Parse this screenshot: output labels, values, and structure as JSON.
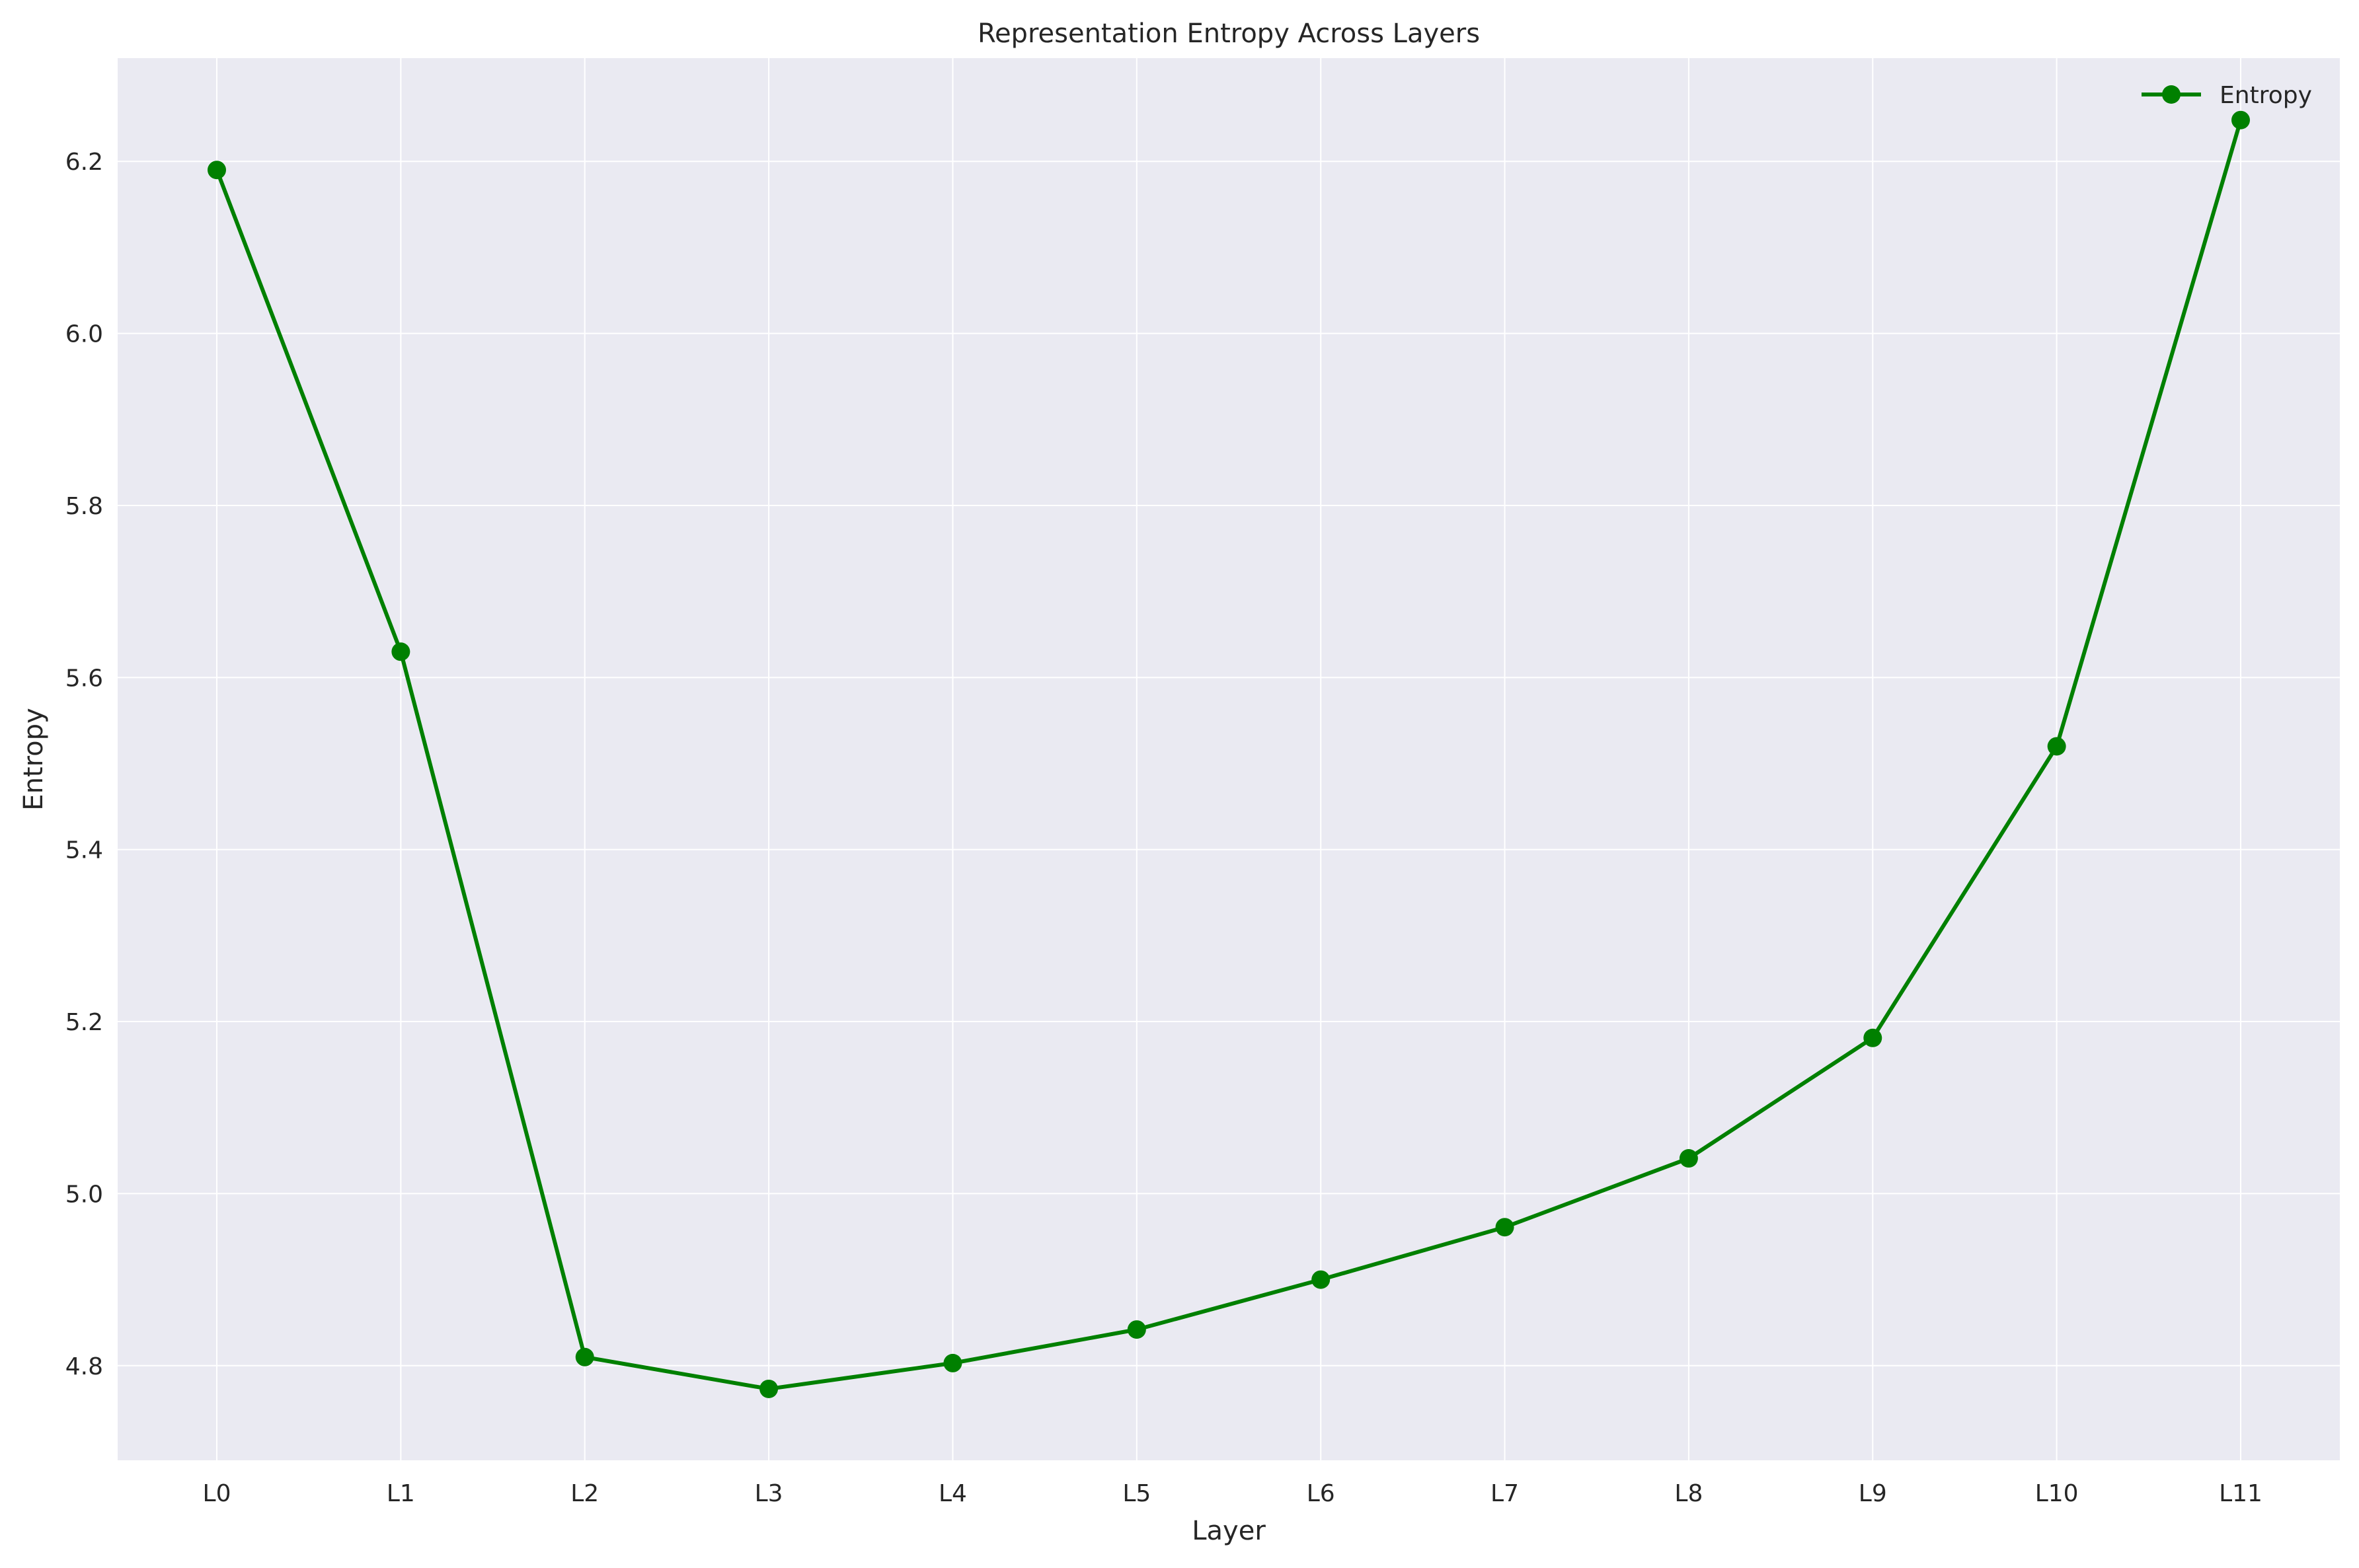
{
  "chart_data": {
    "type": "line",
    "title": "Representation Entropy Across Layers",
    "xlabel": "Layer",
    "ylabel": "Entropy",
    "categories": [
      "L0",
      "L1",
      "L2",
      "L3",
      "L4",
      "L5",
      "L6",
      "L7",
      "L8",
      "L9",
      "L10",
      "L11"
    ],
    "series": [
      {
        "name": "Entropy",
        "color": "#008000",
        "marker": "circle",
        "values": [
          6.19,
          5.63,
          4.81,
          4.773,
          4.803,
          4.842,
          4.9,
          4.961,
          5.041,
          5.181,
          5.52,
          6.248
        ]
      }
    ],
    "ylim": [
      4.69,
      6.32
    ],
    "yticks": [
      4.8,
      5.0,
      5.2,
      5.4,
      5.6,
      5.8,
      6.0,
      6.2
    ],
    "ytick_labels": [
      "4.8",
      "5.0",
      "5.2",
      "5.4",
      "5.6",
      "5.8",
      "6.0",
      "6.2"
    ],
    "grid": true,
    "legend_position": "top-right",
    "background_color": "#eaeaf2",
    "grid_color": "#ffffff"
  }
}
